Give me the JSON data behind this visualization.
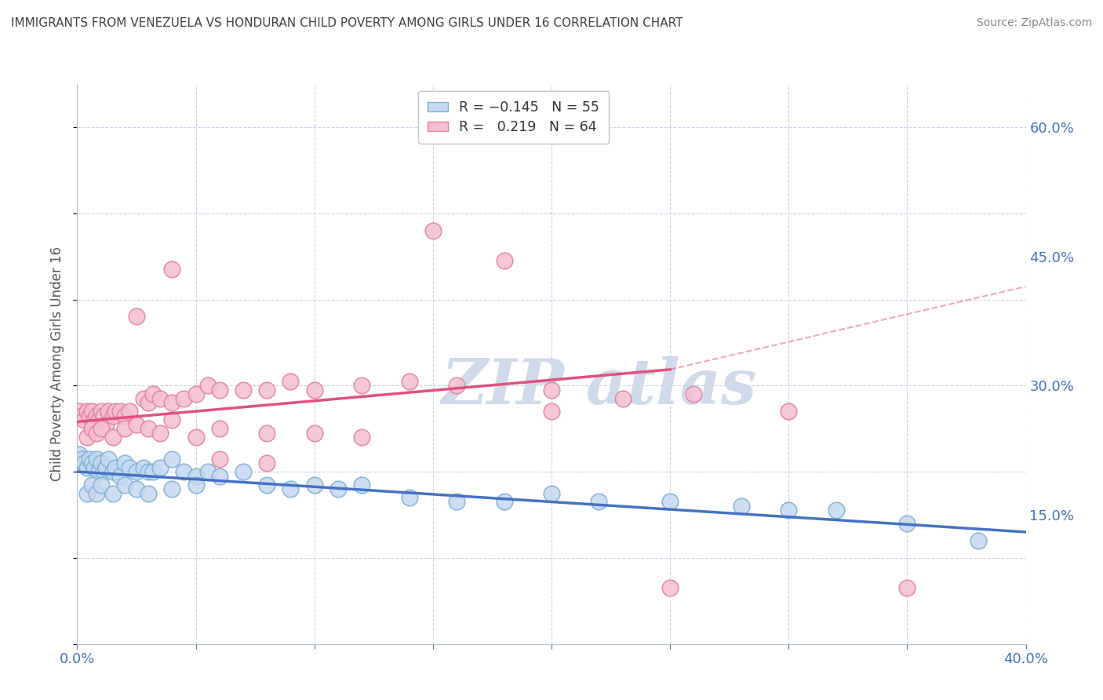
{
  "title": "IMMIGRANTS FROM VENEZUELA VS HONDURAN CHILD POVERTY AMONG GIRLS UNDER 16 CORRELATION CHART",
  "source": "Source: ZipAtlas.com",
  "ylabel": "Child Poverty Among Girls Under 16",
  "xlim": [
    0.0,
    0.4
  ],
  "ylim": [
    0.0,
    0.65
  ],
  "xtick_positions": [
    0.0,
    0.05,
    0.1,
    0.15,
    0.2,
    0.25,
    0.3,
    0.35,
    0.4
  ],
  "yticks_right": [
    0.15,
    0.3,
    0.45,
    0.6
  ],
  "yticklabels_right": [
    "15.0%",
    "30.0%",
    "45.0%",
    "60.0%"
  ],
  "blue_color": "#4472c4",
  "blue_marker_fill": "#c5d8f0",
  "blue_marker_edge": "#7bafd4",
  "pink_color": "#e05080",
  "pink_marker_fill": "#f5bfd0",
  "pink_marker_edge": "#e080a0",
  "grid_color": "#c8d4e8",
  "tick_color": "#4472c4",
  "watermark_color": "#d0daea",
  "background_color": "#ffffff",
  "blue_trend": [
    0.2,
    0.13
  ],
  "pink_trend": [
    0.258,
    0.355
  ],
  "dash_trend": [
    0.355,
    0.415
  ],
  "blue_x": [
    0.001,
    0.002,
    0.003,
    0.004,
    0.005,
    0.006,
    0.007,
    0.008,
    0.009,
    0.01,
    0.011,
    0.012,
    0.013,
    0.015,
    0.016,
    0.018,
    0.02,
    0.022,
    0.025,
    0.028,
    0.03,
    0.032,
    0.035,
    0.04,
    0.045,
    0.05,
    0.055,
    0.06,
    0.07,
    0.08,
    0.09,
    0.1,
    0.11,
    0.12,
    0.14,
    0.16,
    0.18,
    0.2,
    0.22,
    0.25,
    0.28,
    0.3,
    0.32,
    0.35,
    0.38,
    0.004,
    0.006,
    0.008,
    0.01,
    0.015,
    0.02,
    0.025,
    0.03,
    0.04,
    0.05
  ],
  "blue_y": [
    0.22,
    0.215,
    0.21,
    0.205,
    0.215,
    0.21,
    0.205,
    0.215,
    0.2,
    0.21,
    0.2,
    0.205,
    0.215,
    0.2,
    0.205,
    0.195,
    0.21,
    0.205,
    0.2,
    0.205,
    0.2,
    0.2,
    0.205,
    0.215,
    0.2,
    0.195,
    0.2,
    0.195,
    0.2,
    0.185,
    0.18,
    0.185,
    0.18,
    0.185,
    0.17,
    0.165,
    0.165,
    0.175,
    0.165,
    0.165,
    0.16,
    0.155,
    0.155,
    0.14,
    0.12,
    0.175,
    0.185,
    0.175,
    0.185,
    0.175,
    0.185,
    0.18,
    0.175,
    0.18,
    0.185
  ],
  "pink_x": [
    0.001,
    0.002,
    0.003,
    0.004,
    0.005,
    0.006,
    0.007,
    0.008,
    0.009,
    0.01,
    0.011,
    0.012,
    0.013,
    0.015,
    0.016,
    0.018,
    0.02,
    0.022,
    0.025,
    0.028,
    0.03,
    0.032,
    0.035,
    0.04,
    0.045,
    0.05,
    0.055,
    0.06,
    0.07,
    0.08,
    0.09,
    0.1,
    0.12,
    0.14,
    0.16,
    0.2,
    0.23,
    0.26,
    0.004,
    0.006,
    0.008,
    0.01,
    0.015,
    0.02,
    0.025,
    0.03,
    0.035,
    0.04,
    0.05,
    0.06,
    0.08,
    0.1,
    0.12,
    0.15,
    0.18,
    0.04,
    0.06,
    0.08,
    0.2,
    0.25,
    0.3,
    0.35
  ],
  "pink_y": [
    0.27,
    0.265,
    0.26,
    0.27,
    0.265,
    0.27,
    0.26,
    0.265,
    0.26,
    0.27,
    0.265,
    0.255,
    0.27,
    0.265,
    0.27,
    0.27,
    0.265,
    0.27,
    0.38,
    0.285,
    0.28,
    0.29,
    0.285,
    0.28,
    0.285,
    0.29,
    0.3,
    0.295,
    0.295,
    0.295,
    0.305,
    0.295,
    0.3,
    0.305,
    0.3,
    0.295,
    0.285,
    0.29,
    0.24,
    0.25,
    0.245,
    0.25,
    0.24,
    0.25,
    0.255,
    0.25,
    0.245,
    0.26,
    0.24,
    0.25,
    0.245,
    0.245,
    0.24,
    0.48,
    0.445,
    0.435,
    0.215,
    0.21,
    0.27,
    0.065,
    0.27,
    0.065
  ]
}
